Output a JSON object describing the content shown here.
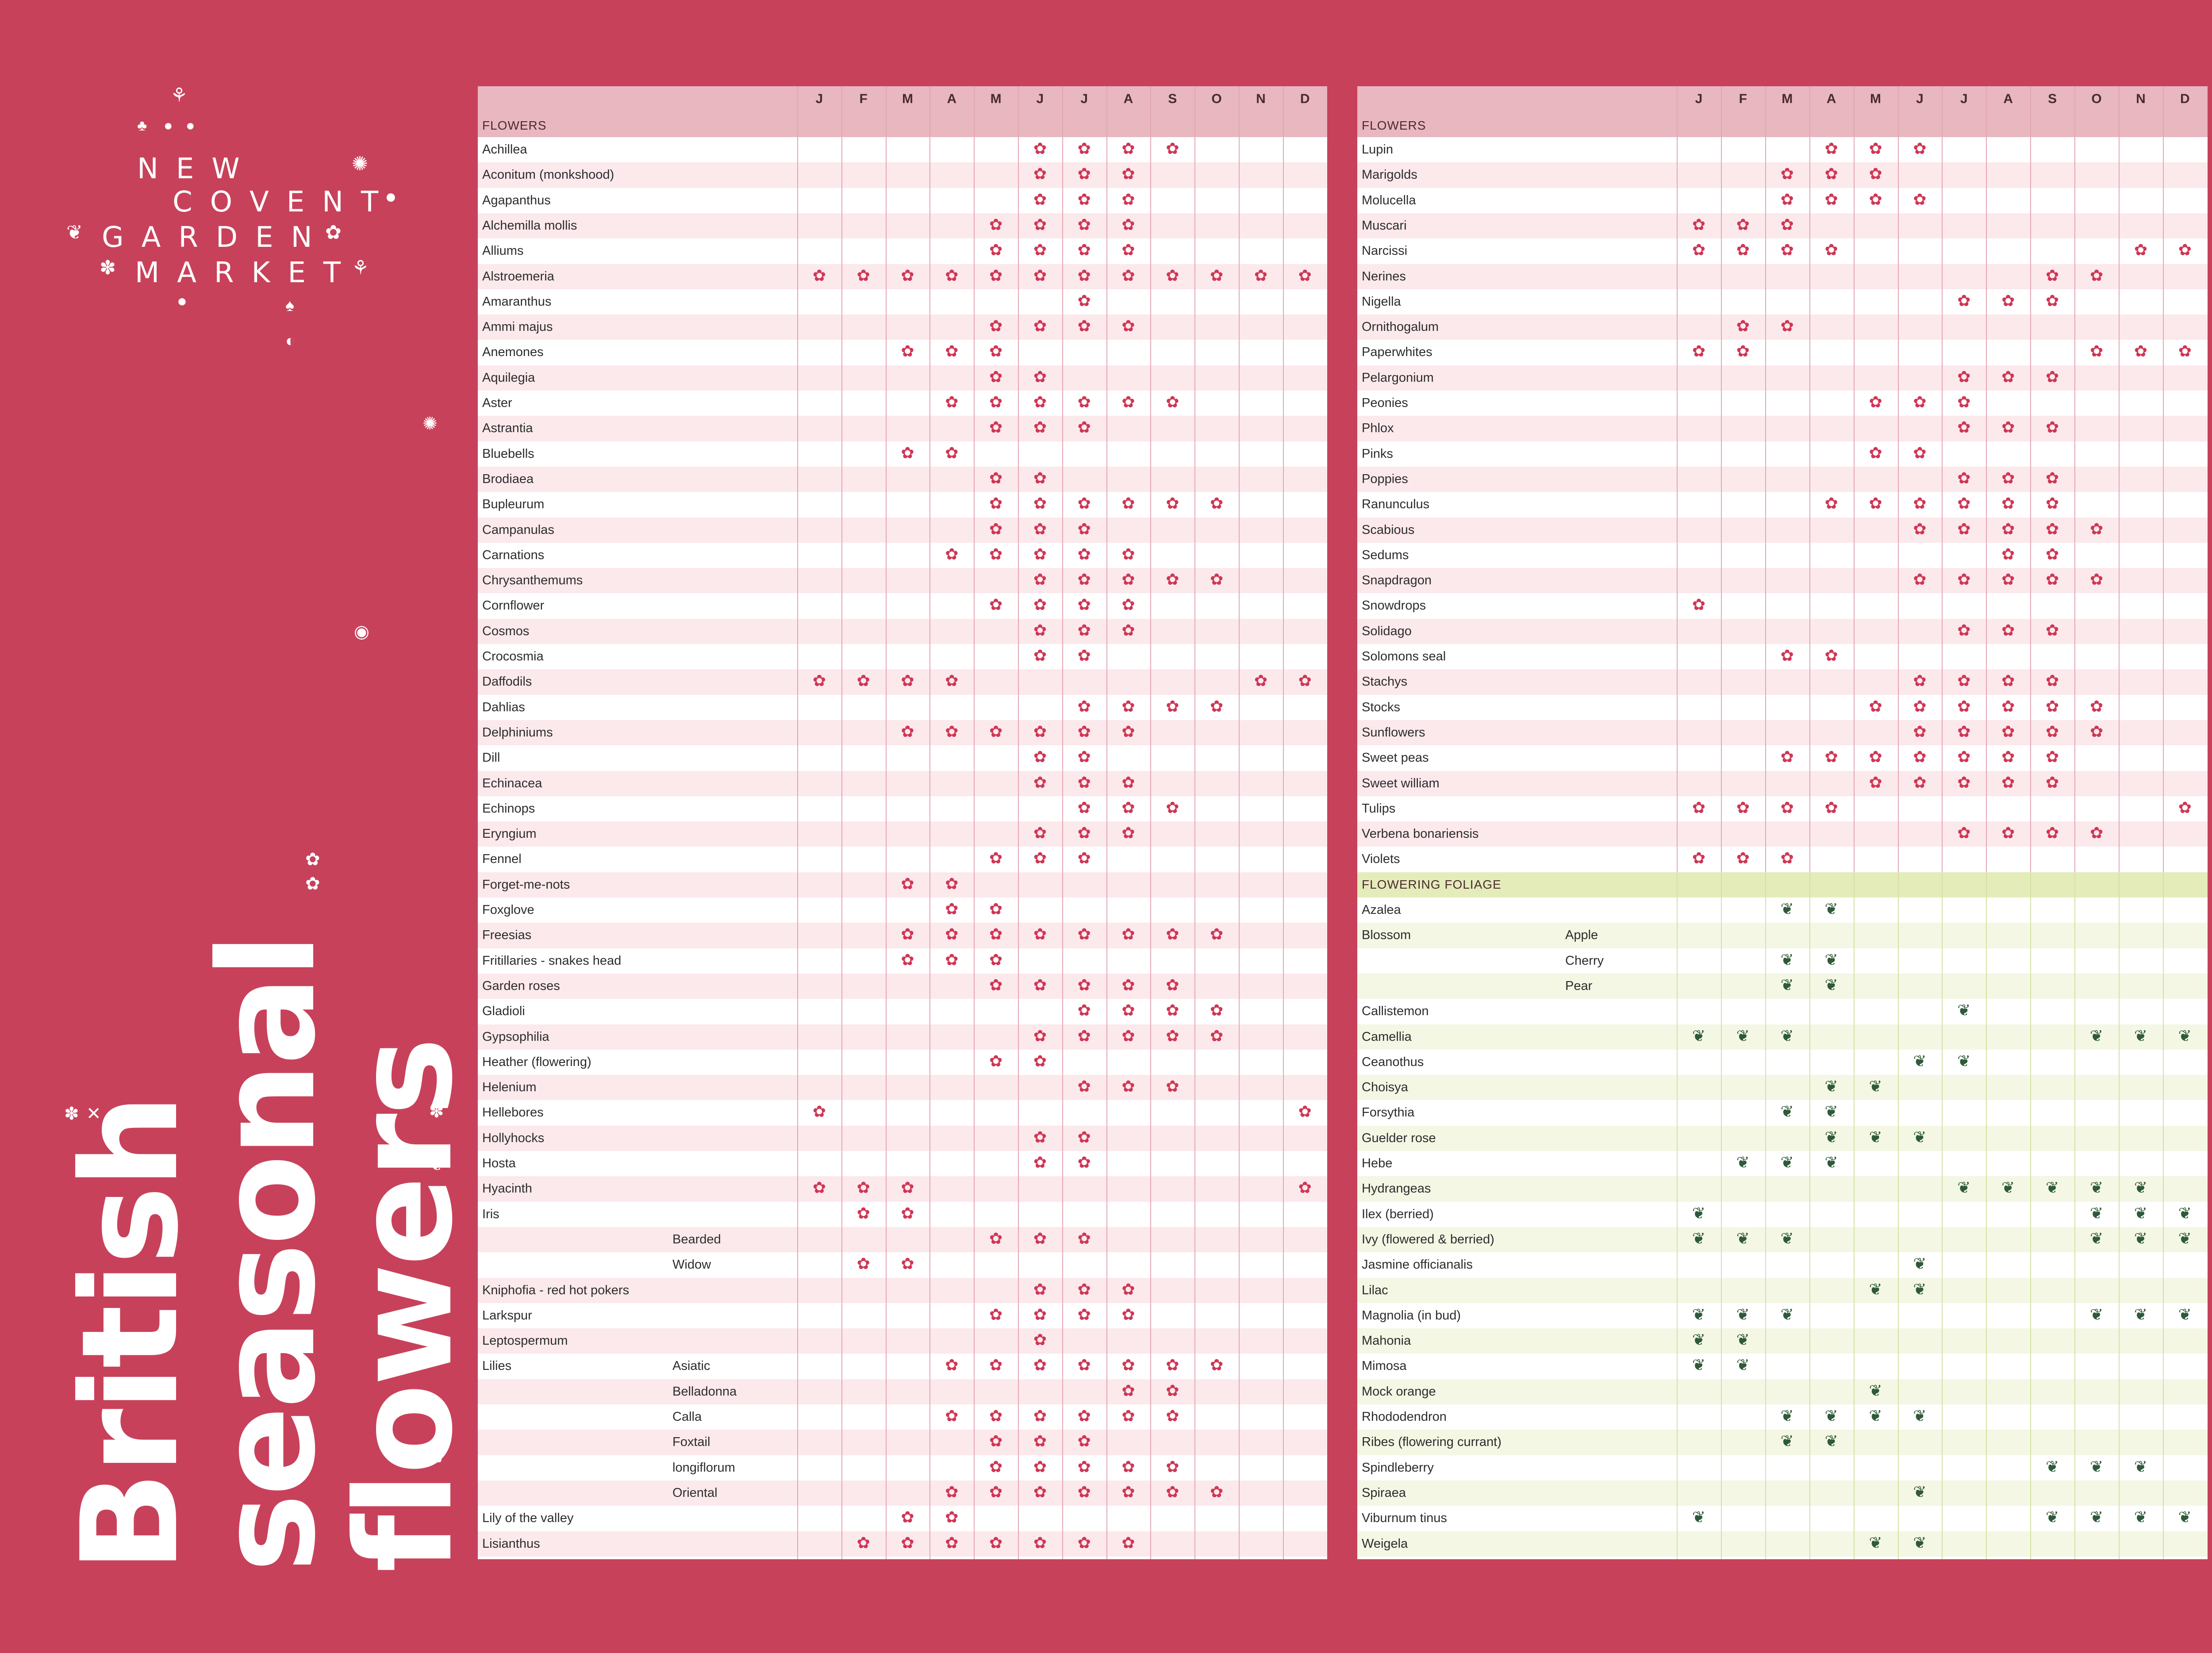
{
  "brand": {
    "lines": [
      "NEW",
      "COVENT",
      "GARDEN",
      "MARKET"
    ]
  },
  "title": {
    "line1": "British",
    "line2": "seasonal",
    "line3": "flowers"
  },
  "months": [
    "J",
    "F",
    "M",
    "A",
    "M",
    "J",
    "J",
    "A",
    "S",
    "O",
    "N",
    "D"
  ],
  "colors": {
    "background": "#c8415a",
    "header": "#e8b7c0",
    "flower_row_alt": "#fce9ec",
    "foliage_header": "#e4ecba",
    "foliage_row_alt": "#f3f7e4",
    "flower_mark": "#cf3655",
    "foliage_mark": "#2f5a3a"
  },
  "icons": {
    "flower": "flower-icon",
    "leaf": "leaf-icon"
  },
  "left_panel": {
    "section": "FLOWERS",
    "rows": [
      {
        "name": "Achillea",
        "sub": "",
        "m": [
          6,
          7,
          8,
          9
        ]
      },
      {
        "name": "Aconitum (monkshood)",
        "sub": "",
        "m": [
          6,
          7,
          8
        ]
      },
      {
        "name": "Agapanthus",
        "sub": "",
        "m": [
          6,
          7,
          8
        ]
      },
      {
        "name": "Alchemilla mollis",
        "sub": "",
        "m": [
          5,
          6,
          7,
          8
        ]
      },
      {
        "name": "Alliums",
        "sub": "",
        "m": [
          5,
          6,
          7,
          8
        ]
      },
      {
        "name": "Alstroemeria",
        "sub": "",
        "m": [
          1,
          2,
          3,
          4,
          5,
          6,
          7,
          8,
          9,
          10,
          11,
          12
        ]
      },
      {
        "name": "Amaranthus",
        "sub": "",
        "m": [
          7
        ]
      },
      {
        "name": "Ammi majus",
        "sub": "",
        "m": [
          5,
          6,
          7,
          8
        ]
      },
      {
        "name": "Anemones",
        "sub": "",
        "m": [
          3,
          4,
          5
        ]
      },
      {
        "name": "Aquilegia",
        "sub": "",
        "m": [
          5,
          6
        ]
      },
      {
        "name": "Aster",
        "sub": "",
        "m": [
          4,
          5,
          6,
          7,
          8,
          9
        ]
      },
      {
        "name": "Astrantia",
        "sub": "",
        "m": [
          5,
          6,
          7
        ]
      },
      {
        "name": "Bluebells",
        "sub": "",
        "m": [
          3,
          4
        ]
      },
      {
        "name": "Brodiaea",
        "sub": "",
        "m": [
          5,
          6
        ]
      },
      {
        "name": "Bupleurum",
        "sub": "",
        "m": [
          5,
          6,
          7,
          8,
          9,
          10
        ]
      },
      {
        "name": "Campanulas",
        "sub": "",
        "m": [
          5,
          6,
          7
        ]
      },
      {
        "name": "Carnations",
        "sub": "",
        "m": [
          4,
          5,
          6,
          7,
          8
        ]
      },
      {
        "name": "Chrysanthemums",
        "sub": "",
        "m": [
          6,
          7,
          8,
          9,
          10
        ]
      },
      {
        "name": "Cornflower",
        "sub": "",
        "m": [
          5,
          6,
          7,
          8
        ]
      },
      {
        "name": "Cosmos",
        "sub": "",
        "m": [
          6,
          7,
          8
        ]
      },
      {
        "name": "Crocosmia",
        "sub": "",
        "m": [
          6,
          7
        ]
      },
      {
        "name": "Daffodils",
        "sub": "",
        "m": [
          1,
          2,
          3,
          4,
          11,
          12
        ]
      },
      {
        "name": "Dahlias",
        "sub": "",
        "m": [
          7,
          8,
          9,
          10
        ]
      },
      {
        "name": "Delphiniums",
        "sub": "",
        "m": [
          3,
          4,
          5,
          6,
          7,
          8
        ]
      },
      {
        "name": "Dill",
        "sub": "",
        "m": [
          6,
          7
        ]
      },
      {
        "name": "Echinacea",
        "sub": "",
        "m": [
          6,
          7,
          8
        ]
      },
      {
        "name": "Echinops",
        "sub": "",
        "m": [
          7,
          8,
          9
        ]
      },
      {
        "name": "Eryngium",
        "sub": "",
        "m": [
          6,
          7,
          8
        ]
      },
      {
        "name": "Fennel",
        "sub": "",
        "m": [
          5,
          6,
          7
        ]
      },
      {
        "name": "Forget-me-nots",
        "sub": "",
        "m": [
          3,
          4
        ]
      },
      {
        "name": "Foxglove",
        "sub": "",
        "m": [
          4,
          5
        ]
      },
      {
        "name": "Freesias",
        "sub": "",
        "m": [
          3,
          4,
          5,
          6,
          7,
          8,
          9,
          10
        ]
      },
      {
        "name": "Fritillaries - snakes head",
        "sub": "",
        "m": [
          3,
          4,
          5
        ]
      },
      {
        "name": "Garden roses",
        "sub": "",
        "m": [
          5,
          6,
          7,
          8,
          9
        ]
      },
      {
        "name": "Gladioli",
        "sub": "",
        "m": [
          7,
          8,
          9,
          10
        ]
      },
      {
        "name": "Gypsophilia",
        "sub": "",
        "m": [
          6,
          7,
          8,
          9,
          10
        ]
      },
      {
        "name": "Heather (flowering)",
        "sub": "",
        "m": [
          5,
          6
        ]
      },
      {
        "name": "Helenium",
        "sub": "",
        "m": [
          7,
          8,
          9
        ]
      },
      {
        "name": "Hellebores",
        "sub": "",
        "m": [
          1,
          12
        ]
      },
      {
        "name": "Hollyhocks",
        "sub": "",
        "m": [
          6,
          7
        ]
      },
      {
        "name": "Hosta",
        "sub": "",
        "m": [
          6,
          7
        ]
      },
      {
        "name": "Hyacinth",
        "sub": "",
        "m": [
          1,
          2,
          3,
          12
        ]
      },
      {
        "name": "Iris",
        "sub": "",
        "m": [
          2,
          3
        ]
      },
      {
        "name": "",
        "sub": "Bearded",
        "m": [
          5,
          6,
          7
        ]
      },
      {
        "name": "",
        "sub": "Widow",
        "m": [
          2,
          3
        ]
      },
      {
        "name": "Kniphofia - red hot pokers",
        "sub": "",
        "m": [
          6,
          7,
          8
        ]
      },
      {
        "name": "Larkspur",
        "sub": "",
        "m": [
          5,
          6,
          7,
          8
        ]
      },
      {
        "name": "Leptospermum",
        "sub": "",
        "m": [
          6
        ]
      },
      {
        "name": "Lilies",
        "sub": "Asiatic",
        "m": [
          4,
          5,
          6,
          7,
          8,
          9,
          10
        ]
      },
      {
        "name": "",
        "sub": "Belladonna",
        "m": [
          8,
          9
        ]
      },
      {
        "name": "",
        "sub": "Calla",
        "m": [
          4,
          5,
          6,
          7,
          8,
          9
        ]
      },
      {
        "name": "",
        "sub": "Foxtail",
        "m": [
          5,
          6,
          7
        ]
      },
      {
        "name": "",
        "sub": "longiflorum",
        "m": [
          5,
          6,
          7,
          8,
          9
        ]
      },
      {
        "name": "",
        "sub": "Oriental",
        "m": [
          4,
          5,
          6,
          7,
          8,
          9,
          10
        ]
      },
      {
        "name": "Lily of the valley",
        "sub": "",
        "m": [
          3,
          4
        ]
      },
      {
        "name": "Lisianthus",
        "sub": "",
        "m": [
          2,
          3,
          4,
          5,
          6,
          7,
          8
        ]
      }
    ]
  },
  "right_panel": {
    "section": "FLOWERS",
    "rows": [
      {
        "name": "Lupin",
        "sub": "",
        "m": [
          4,
          5,
          6
        ],
        "t": "f"
      },
      {
        "name": "Marigolds",
        "sub": "",
        "m": [
          3,
          4,
          5
        ],
        "t": "f"
      },
      {
        "name": "Molucella",
        "sub": "",
        "m": [
          3,
          4,
          5,
          6
        ],
        "t": "f"
      },
      {
        "name": "Muscari",
        "sub": "",
        "m": [
          1,
          2,
          3
        ],
        "t": "f"
      },
      {
        "name": "Narcissi",
        "sub": "",
        "m": [
          1,
          2,
          3,
          4,
          11,
          12
        ],
        "t": "f"
      },
      {
        "name": "Nerines",
        "sub": "",
        "m": [
          9,
          10
        ],
        "t": "f"
      },
      {
        "name": "Nigella",
        "sub": "",
        "m": [
          7,
          8,
          9
        ],
        "t": "f"
      },
      {
        "name": "Ornithogalum",
        "sub": "",
        "m": [
          2,
          3
        ],
        "t": "f"
      },
      {
        "name": "Paperwhites",
        "sub": "",
        "m": [
          1,
          2,
          10,
          11,
          12
        ],
        "t": "f"
      },
      {
        "name": "Pelargonium",
        "sub": "",
        "m": [
          7,
          8,
          9
        ],
        "t": "f"
      },
      {
        "name": "Peonies",
        "sub": "",
        "m": [
          5,
          6,
          7
        ],
        "t": "f"
      },
      {
        "name": "Phlox",
        "sub": "",
        "m": [
          7,
          8,
          9
        ],
        "t": "f"
      },
      {
        "name": "Pinks",
        "sub": "",
        "m": [
          5,
          6
        ],
        "t": "f"
      },
      {
        "name": "Poppies",
        "sub": "",
        "m": [
          7,
          8,
          9
        ],
        "t": "f"
      },
      {
        "name": "Ranunculus",
        "sub": "",
        "m": [
          4,
          5,
          6,
          7,
          8,
          9
        ],
        "t": "f"
      },
      {
        "name": "Scabious",
        "sub": "",
        "m": [
          6,
          7,
          8,
          9,
          10
        ],
        "t": "f"
      },
      {
        "name": "Sedums",
        "sub": "",
        "m": [
          8,
          9
        ],
        "t": "f"
      },
      {
        "name": "Snapdragon",
        "sub": "",
        "m": [
          6,
          7,
          8,
          9,
          10
        ],
        "t": "f"
      },
      {
        "name": "Snowdrops",
        "sub": "",
        "m": [
          1
        ],
        "t": "f"
      },
      {
        "name": "Solidago",
        "sub": "",
        "m": [
          7,
          8,
          9
        ],
        "t": "f"
      },
      {
        "name": "Solomons seal",
        "sub": "",
        "m": [
          3,
          4
        ],
        "t": "f"
      },
      {
        "name": "Stachys",
        "sub": "",
        "m": [
          6,
          7,
          8,
          9
        ],
        "t": "f"
      },
      {
        "name": "Stocks",
        "sub": "",
        "m": [
          5,
          6,
          7,
          8,
          9,
          10
        ],
        "t": "f"
      },
      {
        "name": "Sunflowers",
        "sub": "",
        "m": [
          6,
          7,
          8,
          9,
          10
        ],
        "t": "f"
      },
      {
        "name": "Sweet peas",
        "sub": "",
        "m": [
          3,
          4,
          5,
          6,
          7,
          8,
          9
        ],
        "t": "f"
      },
      {
        "name": "Sweet william",
        "sub": "",
        "m": [
          5,
          6,
          7,
          8,
          9
        ],
        "t": "f"
      },
      {
        "name": "Tulips",
        "sub": "",
        "m": [
          1,
          2,
          3,
          4,
          12
        ],
        "t": "f"
      },
      {
        "name": "Verbena bonariensis",
        "sub": "",
        "m": [
          7,
          8,
          9,
          10
        ],
        "t": "f"
      },
      {
        "name": "Violets",
        "sub": "",
        "m": [
          1,
          2,
          3
        ],
        "t": "f"
      },
      {
        "section": "FLOWERING FOLIAGE"
      },
      {
        "name": "Azalea",
        "sub": "",
        "m": [
          3,
          4
        ],
        "t": "l"
      },
      {
        "name": "Blossom",
        "sub": "Apple",
        "m": [],
        "t": "l"
      },
      {
        "name": "",
        "sub": "Cherry",
        "m": [
          3,
          4
        ],
        "t": "l"
      },
      {
        "name": "",
        "sub": "Pear",
        "m": [
          3,
          4
        ],
        "t": "l"
      },
      {
        "name": "Callistemon",
        "sub": "",
        "m": [
          7
        ],
        "t": "l"
      },
      {
        "name": "Camellia",
        "sub": "",
        "m": [
          1,
          2,
          3,
          10,
          11,
          12
        ],
        "t": "l"
      },
      {
        "name": "Ceanothus",
        "sub": "",
        "m": [
          6,
          7
        ],
        "t": "l"
      },
      {
        "name": "Choisya",
        "sub": "",
        "m": [
          4,
          5
        ],
        "t": "l"
      },
      {
        "name": "Forsythia",
        "sub": "",
        "m": [
          3,
          4
        ],
        "t": "l"
      },
      {
        "name": "Guelder rose",
        "sub": "",
        "m": [
          4,
          5,
          6
        ],
        "t": "l"
      },
      {
        "name": "Hebe",
        "sub": "",
        "m": [
          2,
          3,
          4
        ],
        "t": "l"
      },
      {
        "name": "Hydrangeas",
        "sub": "",
        "m": [
          7,
          8,
          9,
          10,
          11
        ],
        "t": "l"
      },
      {
        "name": "Ilex (berried)",
        "sub": "",
        "m": [
          1,
          10,
          11,
          12
        ],
        "t": "l"
      },
      {
        "name": "Ivy (flowered & berried)",
        "sub": "",
        "m": [
          1,
          2,
          3,
          10,
          11,
          12
        ],
        "t": "l"
      },
      {
        "name": "Jasmine officianalis",
        "sub": "",
        "m": [
          6
        ],
        "t": "l"
      },
      {
        "name": "Lilac",
        "sub": "",
        "m": [
          5,
          6
        ],
        "t": "l"
      },
      {
        "name": "Magnolia (in bud)",
        "sub": "",
        "m": [
          1,
          2,
          3,
          10,
          11,
          12
        ],
        "t": "l"
      },
      {
        "name": "Mahonia",
        "sub": "",
        "m": [
          1,
          2
        ],
        "t": "l"
      },
      {
        "name": "Mimosa",
        "sub": "",
        "m": [
          1,
          2
        ],
        "t": "l"
      },
      {
        "name": "Mock orange",
        "sub": "",
        "m": [
          5
        ],
        "t": "l"
      },
      {
        "name": "Rhododendron",
        "sub": "",
        "m": [
          3,
          4,
          5,
          6
        ],
        "t": "l"
      },
      {
        "name": "Ribes (flowering currant)",
        "sub": "",
        "m": [
          3,
          4
        ],
        "t": "l"
      },
      {
        "name": "Spindleberry",
        "sub": "",
        "m": [
          9,
          10,
          11
        ],
        "t": "l"
      },
      {
        "name": "Spiraea",
        "sub": "",
        "m": [
          6
        ],
        "t": "l"
      },
      {
        "name": "Viburnum tinus",
        "sub": "",
        "m": [
          1,
          9,
          10,
          11,
          12
        ],
        "t": "l"
      },
      {
        "name": "Weigela",
        "sub": "",
        "m": [
          5,
          6
        ],
        "t": "l"
      }
    ]
  }
}
